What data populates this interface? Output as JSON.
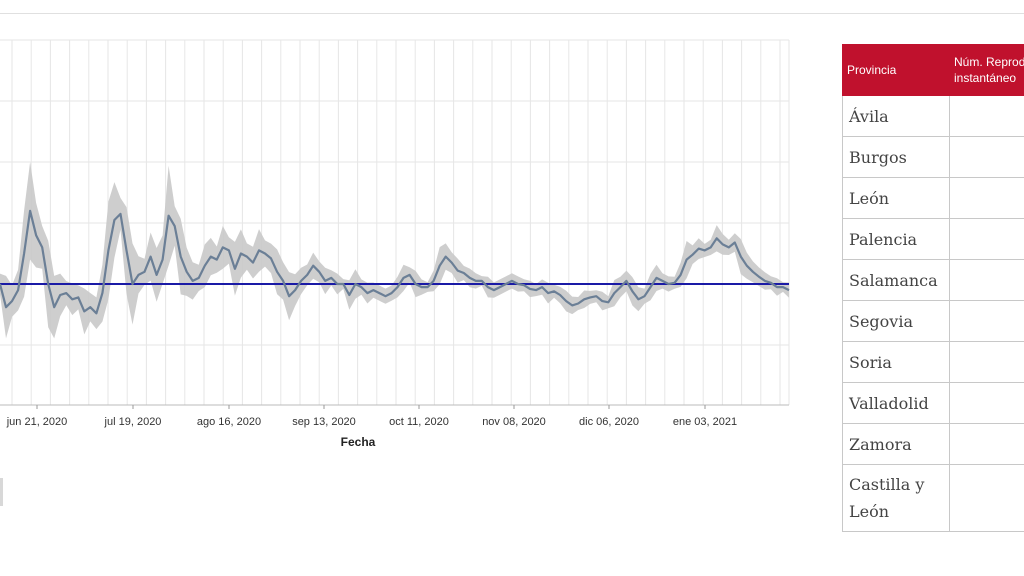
{
  "chart_data": {
    "type": "line",
    "xlabel": "Fecha",
    "x_ticks": [
      "jun 21, 2020",
      "jul 19, 2020",
      "ago 16, 2020",
      "sep 13, 2020",
      "oct 11, 2020",
      "nov 08, 2020",
      "dic 06, 2020",
      "ene 03, 2021"
    ],
    "reference_line": 1.0,
    "ylim": [
      0.0,
      3.0
    ],
    "grid": true,
    "band_color": "#c9c9c9",
    "line_color": "#6b7f96",
    "ref_color": "#1a1aa6",
    "series": [
      {
        "values": [
          1.0,
          0.62,
          0.72,
          0.9,
          1.5,
          2.2,
          1.8,
          1.6,
          1.0,
          0.62,
          0.82,
          0.85,
          0.75,
          0.78,
          0.55,
          0.62,
          0.52,
          0.85,
          1.55,
          2.05,
          2.15,
          1.55,
          1.0,
          1.15,
          1.2,
          1.45,
          1.15,
          1.4,
          2.12,
          1.95,
          1.45,
          1.2,
          1.05,
          1.1,
          1.3,
          1.45,
          1.4,
          1.6,
          1.55,
          1.25,
          1.5,
          1.45,
          1.35,
          1.55,
          1.5,
          1.42,
          1.2,
          1.05,
          0.8,
          0.9,
          1.05,
          1.15,
          1.3,
          1.2,
          1.05,
          1.1,
          1.0,
          1.0,
          0.82,
          1.0,
          0.95,
          0.85,
          0.9,
          0.85,
          0.8,
          0.85,
          0.95,
          1.1,
          1.15,
          1.0,
          0.95,
          0.95,
          1.05,
          1.3,
          1.45,
          1.35,
          1.22,
          1.18,
          1.1,
          1.05,
          1.05,
          0.95,
          0.9,
          0.95,
          1.0,
          1.05,
          1.0,
          0.98,
          0.92,
          0.9,
          0.95,
          0.85,
          0.88,
          0.82,
          0.72,
          0.65,
          0.68,
          0.75,
          0.78,
          0.8,
          0.72,
          0.7,
          0.85,
          0.95,
          1.05,
          0.88,
          0.75,
          0.8,
          0.95,
          1.1,
          1.05,
          1.0,
          1.02,
          1.15,
          1.4,
          1.48,
          1.58,
          1.55,
          1.6,
          1.75,
          1.65,
          1.6,
          1.68,
          1.45,
          1.3,
          1.2,
          1.12,
          1.05,
          1.02,
          0.95,
          0.95,
          0.9
        ]
      }
    ]
  },
  "table": {
    "headers": [
      "Provincia",
      "Núm. Reproducción instantáneo"
    ],
    "header_line1": "Núm. Reprodu",
    "header_line2": "instantáneo",
    "rows": [
      "Ávila",
      "Burgos",
      "León",
      "Palencia",
      "Salamanca",
      "Segovia",
      "Soria",
      "Valladolid",
      "Zamora"
    ],
    "last_row_line1": "Castilla y",
    "last_row_line2": "León"
  }
}
